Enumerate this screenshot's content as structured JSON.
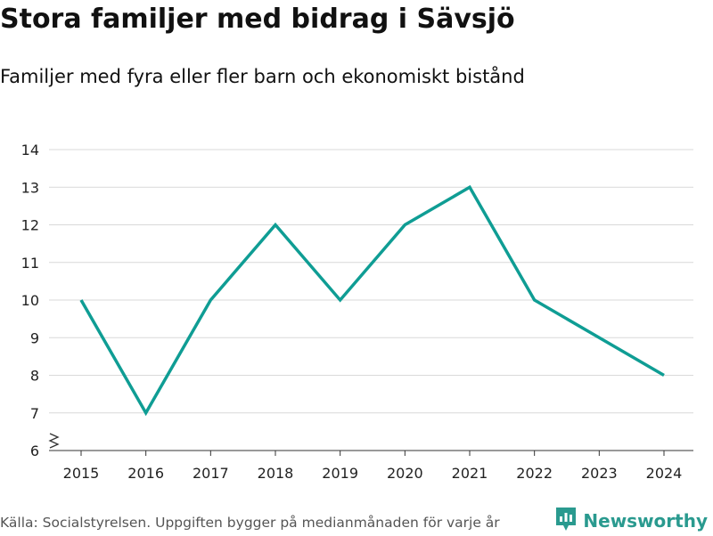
{
  "title": "Stora familjer med bidrag i Sävsjö",
  "subtitle": "Familjer med fyra eller fler barn och ekonomiskt bistånd",
  "footer": {
    "source": "Källa: Socialstyrelsen. Uppgiften bygger på medianmånaden för varje år",
    "brand": "Newsworthy",
    "brand_icon": "bar-chart-logo-icon"
  },
  "colors": {
    "line": "#0f9d94",
    "grid": "#d9d9d9",
    "brand": "#2a9a8f"
  },
  "chart_data": {
    "type": "line",
    "title": "Stora familjer med bidrag i Sävsjö",
    "subtitle": "Familjer med fyra eller fler barn och ekonomiskt bistånd",
    "xlabel": "",
    "ylabel": "",
    "x": [
      "2015",
      "2016",
      "2017",
      "2018",
      "2019",
      "2020",
      "2021",
      "2022",
      "2023",
      "2024"
    ],
    "series": [
      {
        "name": "Familjer",
        "values": [
          10,
          7,
          10,
          12,
          10,
          12,
          13,
          10,
          9,
          8
        ]
      }
    ],
    "ylim": [
      6,
      14
    ],
    "yticks": [
      6,
      7,
      8,
      9,
      10,
      11,
      12,
      13,
      14
    ],
    "grid": true,
    "axis_break": true
  }
}
